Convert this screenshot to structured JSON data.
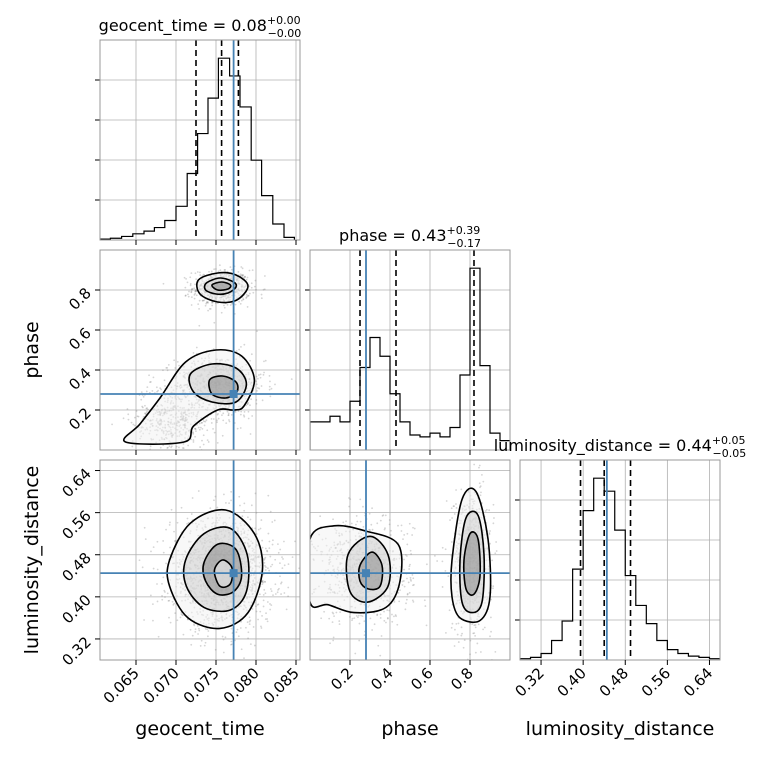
{
  "chart_data": {
    "type": "corner",
    "variables": [
      {
        "name": "geocent_time",
        "axis_label": "geocent_time",
        "range": [
          0.0605,
          0.0855
        ],
        "ticks": [
          0.065,
          0.07,
          0.075,
          0.08,
          0.085
        ],
        "tick_labels": [
          "0.065",
          "0.070",
          "0.075",
          "0.080",
          "0.085"
        ],
        "title_name": "geocent_time",
        "median": "0.08",
        "plus": "+0.00",
        "minus": "−0.00",
        "quantiles": [
          0.0725,
          0.0757,
          0.0778
        ],
        "truth": 0.0772,
        "histogram": {
          "bin_edges": [
            0.0605,
            0.0618,
            0.0632,
            0.0646,
            0.066,
            0.0673,
            0.0686,
            0.07,
            0.0714,
            0.0727,
            0.074,
            0.0753,
            0.0767,
            0.078,
            0.0794,
            0.0807,
            0.0821,
            0.0835,
            0.0848
          ],
          "counts": [
            1,
            2,
            4,
            7,
            10,
            14,
            22,
            38,
            75,
            120,
            160,
            205,
            185,
            150,
            90,
            50,
            18,
            3
          ]
        }
      },
      {
        "name": "phase",
        "axis_label": "phase",
        "range": [
          0.0,
          1.0
        ],
        "ticks": [
          0.2,
          0.4,
          0.6,
          0.8
        ],
        "tick_labels": [
          "0.2",
          "0.4",
          "0.6",
          "0.8"
        ],
        "title_name": "phase",
        "median": "0.43",
        "plus": "+0.39",
        "minus": "−0.17",
        "quantiles": [
          0.25,
          0.43,
          0.82
        ],
        "truth": 0.28,
        "histogram": {
          "bin_edges": [
            0.0,
            0.05,
            0.1,
            0.15,
            0.2,
            0.25,
            0.3,
            0.35,
            0.4,
            0.45,
            0.5,
            0.55,
            0.6,
            0.65,
            0.7,
            0.75,
            0.8,
            0.85,
            0.9,
            0.95,
            1.0
          ],
          "counts": [
            15,
            15,
            18,
            15,
            26,
            44,
            60,
            50,
            30,
            15,
            8,
            7,
            9,
            7,
            12,
            40,
            97,
            45,
            9,
            5
          ]
        }
      },
      {
        "name": "luminosity_distance",
        "axis_label": "luminosity_distance",
        "range": [
          0.28,
          0.66
        ],
        "ticks": [
          0.32,
          0.4,
          0.48,
          0.56,
          0.64
        ],
        "tick_labels": [
          "0.32",
          "0.40",
          "0.48",
          "0.56",
          "0.64"
        ],
        "title_name": "luminosity_distance",
        "median": "0.44",
        "plus": "+0.05",
        "minus": "−0.05",
        "quantiles": [
          0.395,
          0.44,
          0.49
        ],
        "truth": 0.445,
        "histogram": {
          "bin_edges": [
            0.28,
            0.3,
            0.32,
            0.34,
            0.36,
            0.38,
            0.4,
            0.42,
            0.44,
            0.46,
            0.48,
            0.5,
            0.52,
            0.54,
            0.56,
            0.58,
            0.6,
            0.62,
            0.64,
            0.66
          ],
          "counts": [
            1,
            2,
            5,
            15,
            30,
            70,
            115,
            140,
            130,
            100,
            65,
            42,
            28,
            15,
            8,
            5,
            3,
            2,
            1
          ]
        }
      }
    ],
    "contour_pairs": [
      {
        "x": "geocent_time",
        "y": "phase",
        "contours": [
          [
            [
              0.0728,
              0.85
            ],
            [
              0.0752,
              0.885
            ],
            [
              0.0775,
              0.875
            ],
            [
              0.079,
              0.82
            ],
            [
              0.0776,
              0.75
            ],
            [
              0.0752,
              0.74
            ],
            [
              0.073,
              0.78
            ]
          ],
          [
            [
              0.0738,
              0.835
            ],
            [
              0.0755,
              0.86
            ],
            [
              0.0772,
              0.84
            ],
            [
              0.0775,
              0.815
            ],
            [
              0.0765,
              0.785
            ],
            [
              0.075,
              0.78
            ],
            [
              0.0737,
              0.8
            ]
          ],
          [
            [
              0.0745,
              0.825
            ],
            [
              0.0757,
              0.84
            ],
            [
              0.0768,
              0.825
            ],
            [
              0.0765,
              0.805
            ],
            [
              0.0752,
              0.8
            ]
          ],
          [
            [
              0.0637,
              0.04
            ],
            [
              0.0655,
              0.13
            ],
            [
              0.068,
              0.26
            ],
            [
              0.0712,
              0.44
            ],
            [
              0.075,
              0.5
            ],
            [
              0.0782,
              0.47
            ],
            [
              0.0798,
              0.35
            ],
            [
              0.0785,
              0.22
            ],
            [
              0.0772,
              0.2
            ],
            [
              0.0752,
              0.2
            ],
            [
              0.0722,
              0.12
            ],
            [
              0.071,
              0.04
            ]
          ],
          [
            [
              0.0718,
              0.38
            ],
            [
              0.0745,
              0.43
            ],
            [
              0.0775,
              0.41
            ],
            [
              0.0788,
              0.33
            ],
            [
              0.0775,
              0.24
            ],
            [
              0.0745,
              0.24
            ],
            [
              0.0722,
              0.29
            ]
          ],
          [
            [
              0.0742,
              0.35
            ],
            [
              0.0758,
              0.37
            ],
            [
              0.0775,
              0.34
            ],
            [
              0.0776,
              0.29
            ],
            [
              0.0762,
              0.26
            ],
            [
              0.0745,
              0.28
            ]
          ]
        ]
      },
      {
        "x": "geocent_time",
        "y": "luminosity_distance",
        "contours": [
          [
            [
              0.0692,
              0.47
            ],
            [
              0.0718,
              0.54
            ],
            [
              0.0762,
              0.565
            ],
            [
              0.0798,
              0.52
            ],
            [
              0.0808,
              0.45
            ],
            [
              0.079,
              0.37
            ],
            [
              0.0755,
              0.34
            ],
            [
              0.0715,
              0.36
            ],
            [
              0.0692,
              0.42
            ]
          ],
          [
            [
              0.0712,
              0.47
            ],
            [
              0.0735,
              0.52
            ],
            [
              0.0768,
              0.53
            ],
            [
              0.0789,
              0.48
            ],
            [
              0.0788,
              0.41
            ],
            [
              0.0768,
              0.375
            ],
            [
              0.0735,
              0.38
            ],
            [
              0.0713,
              0.42
            ]
          ],
          [
            [
              0.0735,
              0.465
            ],
            [
              0.0752,
              0.5
            ],
            [
              0.0775,
              0.49
            ],
            [
              0.0782,
              0.44
            ],
            [
              0.0772,
              0.41
            ],
            [
              0.0752,
              0.405
            ],
            [
              0.0737,
              0.43
            ]
          ],
          [
            [
              0.0748,
              0.45
            ],
            [
              0.0758,
              0.47
            ],
            [
              0.077,
              0.455
            ],
            [
              0.0768,
              0.425
            ],
            [
              0.0755,
              0.42
            ]
          ]
        ]
      },
      {
        "x": "phase",
        "y": "luminosity_distance",
        "contours": [
          [
            [
              0.0,
              0.51
            ],
            [
              0.12,
              0.535
            ],
            [
              0.28,
              0.525
            ],
            [
              0.44,
              0.5
            ],
            [
              0.45,
              0.43
            ],
            [
              0.38,
              0.38
            ],
            [
              0.22,
              0.37
            ],
            [
              0.09,
              0.385
            ],
            [
              0.0,
              0.39
            ]
          ],
          [
            [
              0.19,
              0.48
            ],
            [
              0.3,
              0.515
            ],
            [
              0.39,
              0.48
            ],
            [
              0.39,
              0.42
            ],
            [
              0.29,
              0.39
            ],
            [
              0.2,
              0.41
            ]
          ],
          [
            [
              0.25,
              0.46
            ],
            [
              0.31,
              0.485
            ],
            [
              0.36,
              0.46
            ],
            [
              0.35,
              0.42
            ],
            [
              0.29,
              0.415
            ],
            [
              0.25,
              0.43
            ]
          ],
          [
            [
              0.71,
              0.47
            ],
            [
              0.76,
              0.585
            ],
            [
              0.83,
              0.6
            ],
            [
              0.89,
              0.51
            ],
            [
              0.9,
              0.4
            ],
            [
              0.85,
              0.355
            ],
            [
              0.75,
              0.36
            ],
            [
              0.71,
              0.4
            ]
          ],
          [
            [
              0.75,
              0.47
            ],
            [
              0.78,
              0.55
            ],
            [
              0.84,
              0.555
            ],
            [
              0.87,
              0.48
            ],
            [
              0.86,
              0.39
            ],
            [
              0.81,
              0.37
            ],
            [
              0.76,
              0.39
            ]
          ],
          [
            [
              0.77,
              0.47
            ],
            [
              0.8,
              0.52
            ],
            [
              0.84,
              0.51
            ],
            [
              0.85,
              0.44
            ],
            [
              0.82,
              0.405
            ],
            [
              0.78,
              0.415
            ]
          ]
        ]
      }
    ],
    "colors": {
      "truth": "#4682b4",
      "contour": "#000000",
      "grid": "#b0b0b0",
      "scatter": "#888888",
      "quantile": "#000000"
    },
    "grid": true,
    "legend": "none"
  }
}
